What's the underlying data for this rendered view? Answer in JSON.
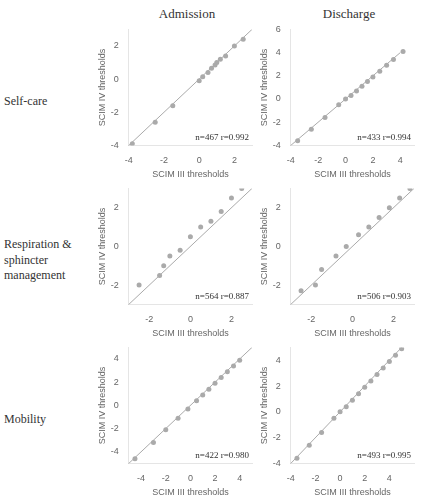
{
  "col_titles": [
    "Admission",
    "Discharge"
  ],
  "row_labels": [
    "Self-care",
    "Respiration &\nsphincter\nmanagement",
    "Mobility"
  ],
  "chart_data": [
    {
      "type": "scatter",
      "xlabel": "SCIM III thresholds",
      "ylabel": "SCIM IV thresholds",
      "annotations": [
        "n=467 r=0.992"
      ],
      "xlim": [
        -4,
        3
      ],
      "ylim": [
        -4,
        3
      ],
      "xticks": [
        -4,
        -2,
        0,
        2
      ],
      "yticks": [
        -4,
        -2,
        0,
        2
      ],
      "grid": false,
      "series": [
        {
          "type": "line",
          "color": "#aaaaaa",
          "x": [
            -4,
            3
          ],
          "values": [
            -4,
            3
          ]
        },
        {
          "type": "scatter",
          "color": "#aaaaaa",
          "x": [
            -3.8,
            -2.5,
            -1.5,
            0.0,
            0.2,
            0.5,
            0.7,
            0.9,
            1.0,
            1.2,
            1.5,
            2.0,
            2.5
          ],
          "values": [
            -3.9,
            -2.6,
            -1.6,
            -0.1,
            0.15,
            0.4,
            0.65,
            0.85,
            1.0,
            1.2,
            1.4,
            2.0,
            2.4
          ]
        }
      ]
    },
    {
      "type": "scatter",
      "xlabel": "SCIM III thresholds",
      "ylabel": "SCIM IV thresholds",
      "annotations": [
        "n=433 r=0.994"
      ],
      "xlim": [
        -4,
        5
      ],
      "ylim": [
        -4,
        6
      ],
      "xticks": [
        -4,
        -2,
        0,
        2,
        4
      ],
      "yticks": [
        -4,
        -2,
        0,
        2,
        4,
        6
      ],
      "grid": false,
      "series": [
        {
          "type": "line",
          "color": "#aaaaaa",
          "x": [
            -4,
            4
          ],
          "values": [
            -4,
            4
          ]
        },
        {
          "type": "scatter",
          "color": "#aaaaaa",
          "x": [
            -3.5,
            -2.5,
            -1.5,
            -0.5,
            0.0,
            0.4,
            0.8,
            1.2,
            1.6,
            2.0,
            2.5,
            3.0,
            3.5,
            4.2
          ],
          "values": [
            -3.6,
            -2.6,
            -1.6,
            -0.5,
            0.0,
            0.3,
            0.7,
            1.1,
            1.5,
            1.9,
            2.4,
            2.9,
            3.4,
            4.1
          ]
        }
      ]
    },
    {
      "type": "scatter",
      "xlabel": "SCIM III thresholds",
      "ylabel": "SCIM IV thresholds",
      "annotations": [
        "n=564 r=0.887"
      ],
      "xlim": [
        -3,
        3
      ],
      "ylim": [
        -3,
        3
      ],
      "xticks": [
        -2,
        0,
        2
      ],
      "yticks": [
        -2,
        0,
        2
      ],
      "grid": false,
      "series": [
        {
          "type": "line",
          "color": "#aaaaaa",
          "x": [
            -3,
            3
          ],
          "values": [
            -3,
            3
          ]
        },
        {
          "type": "scatter",
          "color": "#aaaaaa",
          "x": [
            -2.5,
            -1.5,
            -1.3,
            -1.0,
            -0.5,
            0.0,
            0.5,
            1.0,
            1.5,
            2.0,
            2.5
          ],
          "values": [
            -2.0,
            -1.5,
            -1.0,
            -0.5,
            -0.2,
            0.5,
            1.0,
            1.3,
            1.8,
            2.5,
            3.0
          ]
        }
      ]
    },
    {
      "type": "scatter",
      "xlabel": "SCIM III thresholds",
      "ylabel": "SCIM IV thresholds",
      "annotations": [
        "n=506 r=0.903"
      ],
      "xlim": [
        -3,
        3
      ],
      "ylim": [
        -3,
        3
      ],
      "xticks": [
        -2,
        0,
        2
      ],
      "yticks": [
        -2,
        0,
        2
      ],
      "grid": false,
      "series": [
        {
          "type": "line",
          "color": "#aaaaaa",
          "x": [
            -3,
            3
          ],
          "values": [
            -3,
            3
          ]
        },
        {
          "type": "scatter",
          "color": "#aaaaaa",
          "x": [
            -2.5,
            -1.8,
            -1.5,
            -0.8,
            -0.3,
            0.3,
            0.8,
            1.3,
            1.8,
            2.3,
            2.8
          ],
          "values": [
            -2.3,
            -2.0,
            -1.2,
            -0.5,
            0.0,
            0.6,
            1.0,
            1.5,
            2.0,
            2.5,
            3.0
          ]
        }
      ]
    },
    {
      "type": "scatter",
      "xlabel": "SCIM III thresholds",
      "ylabel": "SCIM IV thresholds",
      "annotations": [
        "n=422 r=0.980"
      ],
      "xlim": [
        -5,
        5
      ],
      "ylim": [
        -5,
        5
      ],
      "xticks": [
        -4,
        -2,
        0,
        2,
        4
      ],
      "yticks": [
        -4,
        -2,
        0,
        2,
        4
      ],
      "grid": false,
      "series": [
        {
          "type": "line",
          "color": "#aaaaaa",
          "x": [
            -5,
            5
          ],
          "values": [
            -5,
            5
          ]
        },
        {
          "type": "scatter",
          "color": "#aaaaaa",
          "x": [
            -4.5,
            -3.0,
            -2.0,
            -1.0,
            -0.2,
            0.5,
            1.0,
            1.5,
            2.0,
            2.5,
            3.0,
            3.5,
            4.0
          ],
          "values": [
            -4.6,
            -3.2,
            -2.1,
            -1.1,
            -0.3,
            0.4,
            0.9,
            1.4,
            1.9,
            2.4,
            2.9,
            3.4,
            3.9
          ]
        }
      ]
    },
    {
      "type": "scatter",
      "xlabel": "SCIM III thresholds",
      "ylabel": "SCIM IV thresholds",
      "annotations": [
        "n=493 r=0.995"
      ],
      "xlim": [
        -4,
        6
      ],
      "ylim": [
        -4,
        5
      ],
      "xticks": [
        -4,
        -2,
        0,
        2,
        4
      ],
      "yticks": [
        -4,
        -2,
        0,
        2,
        4
      ],
      "grid": false,
      "series": [
        {
          "type": "line",
          "color": "#aaaaaa",
          "x": [
            -4,
            5
          ],
          "values": [
            -4,
            5
          ]
        },
        {
          "type": "scatter",
          "color": "#aaaaaa",
          "x": [
            -3.5,
            -2.5,
            -1.5,
            -0.5,
            0.0,
            0.5,
            1.0,
            1.5,
            2.0,
            2.5,
            3.0,
            3.5,
            4.0,
            4.5,
            5.0
          ],
          "values": [
            -3.6,
            -2.6,
            -1.6,
            -0.5,
            0.0,
            0.4,
            0.9,
            1.4,
            1.9,
            2.4,
            2.9,
            3.4,
            3.9,
            4.4,
            4.9
          ]
        }
      ]
    }
  ]
}
